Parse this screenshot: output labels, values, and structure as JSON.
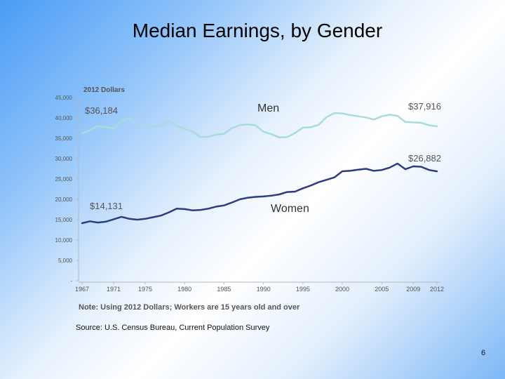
{
  "slide": {
    "title": "Median Earnings, by Gender",
    "source": "Source: U.S. Census Bureau, Current Population Survey",
    "page_number": "6"
  },
  "chart_data": {
    "type": "line",
    "unit_label": "2012 Dollars",
    "note": "Note: Using 2012 Dollars; Workers are 15 years old and over",
    "ylim": [
      0,
      45000
    ],
    "xlim": [
      1967,
      2012
    ],
    "yticks": [
      {
        "value": 45000,
        "label": "45,000"
      },
      {
        "value": 40000,
        "label": "40,000"
      },
      {
        "value": 35000,
        "label": "35,000"
      },
      {
        "value": 30000,
        "label": "30,000"
      },
      {
        "value": 25000,
        "label": "25,000"
      },
      {
        "value": 20000,
        "label": "20,000"
      },
      {
        "value": 15000,
        "label": "15,000"
      },
      {
        "value": 10000,
        "label": "10,000"
      },
      {
        "value": 5000,
        "label": "5,000"
      },
      {
        "value": 0,
        "label": "-"
      }
    ],
    "xticks": [
      {
        "value": 1967,
        "label": "1967"
      },
      {
        "value": 1971,
        "label": "1971"
      },
      {
        "value": 1975,
        "label": "1975"
      },
      {
        "value": 1980,
        "label": "1980"
      },
      {
        "value": 1985,
        "label": "1985"
      },
      {
        "value": 1990,
        "label": "1990"
      },
      {
        "value": 1995,
        "label": "1995"
      },
      {
        "value": 2000,
        "label": "2000"
      },
      {
        "value": 2005,
        "label": "2005"
      },
      {
        "value": 2009,
        "label": "2009"
      },
      {
        "value": 2012,
        "label": "2012"
      }
    ],
    "grid": false,
    "series": [
      {
        "name": "Men",
        "color": "#a8dcdc",
        "start_label": "$36,184",
        "end_label": "$37,916",
        "points": [
          [
            1967,
            36184
          ],
          [
            1968,
            37000
          ],
          [
            1969,
            38000
          ],
          [
            1970,
            37700
          ],
          [
            1971,
            37400
          ],
          [
            1972,
            39300
          ],
          [
            1973,
            40000
          ],
          [
            1974,
            38300
          ],
          [
            1975,
            37700
          ],
          [
            1976,
            37800
          ],
          [
            1977,
            38100
          ],
          [
            1978,
            39200
          ],
          [
            1979,
            38200
          ],
          [
            1980,
            37300
          ],
          [
            1981,
            36700
          ],
          [
            1982,
            35300
          ],
          [
            1983,
            35400
          ],
          [
            1984,
            35900
          ],
          [
            1985,
            36100
          ],
          [
            1986,
            37500
          ],
          [
            1987,
            38200
          ],
          [
            1988,
            38400
          ],
          [
            1989,
            38200
          ],
          [
            1990,
            36600
          ],
          [
            1991,
            36000
          ],
          [
            1992,
            35200
          ],
          [
            1993,
            35300
          ],
          [
            1994,
            36300
          ],
          [
            1995,
            37600
          ],
          [
            1996,
            37700
          ],
          [
            1997,
            38300
          ],
          [
            1998,
            40200
          ],
          [
            1999,
            41200
          ],
          [
            2000,
            41100
          ],
          [
            2001,
            40700
          ],
          [
            2002,
            40400
          ],
          [
            2003,
            40100
          ],
          [
            2004,
            39600
          ],
          [
            2005,
            40400
          ],
          [
            2006,
            40800
          ],
          [
            2007,
            40500
          ],
          [
            2008,
            39000
          ],
          [
            2009,
            38900
          ],
          [
            2010,
            38800
          ],
          [
            2011,
            38200
          ],
          [
            2012,
            37916
          ]
        ]
      },
      {
        "name": "Women",
        "color": "#2e3b7f",
        "start_label": "$14,131",
        "end_label": "$26,882",
        "points": [
          [
            1967,
            14131
          ],
          [
            1968,
            14600
          ],
          [
            1969,
            14300
          ],
          [
            1970,
            14500
          ],
          [
            1971,
            15100
          ],
          [
            1972,
            15700
          ],
          [
            1973,
            15200
          ],
          [
            1974,
            15000
          ],
          [
            1975,
            15200
          ],
          [
            1976,
            15600
          ],
          [
            1977,
            16000
          ],
          [
            1978,
            16800
          ],
          [
            1979,
            17700
          ],
          [
            1980,
            17600
          ],
          [
            1981,
            17300
          ],
          [
            1982,
            17400
          ],
          [
            1983,
            17700
          ],
          [
            1984,
            18200
          ],
          [
            1985,
            18500
          ],
          [
            1986,
            19200
          ],
          [
            1987,
            20000
          ],
          [
            1988,
            20400
          ],
          [
            1989,
            20600
          ],
          [
            1990,
            20700
          ],
          [
            1991,
            20900
          ],
          [
            1992,
            21200
          ],
          [
            1993,
            21800
          ],
          [
            1994,
            21900
          ],
          [
            1995,
            22700
          ],
          [
            1996,
            23400
          ],
          [
            1997,
            24200
          ],
          [
            1998,
            24800
          ],
          [
            1999,
            25400
          ],
          [
            2000,
            26900
          ],
          [
            2001,
            27000
          ],
          [
            2002,
            27300
          ],
          [
            2003,
            27500
          ],
          [
            2004,
            27000
          ],
          [
            2005,
            27200
          ],
          [
            2006,
            27800
          ],
          [
            2007,
            28800
          ],
          [
            2008,
            27400
          ],
          [
            2009,
            28100
          ],
          [
            2010,
            28000
          ],
          [
            2011,
            27200
          ],
          [
            2012,
            26882
          ]
        ]
      }
    ]
  }
}
